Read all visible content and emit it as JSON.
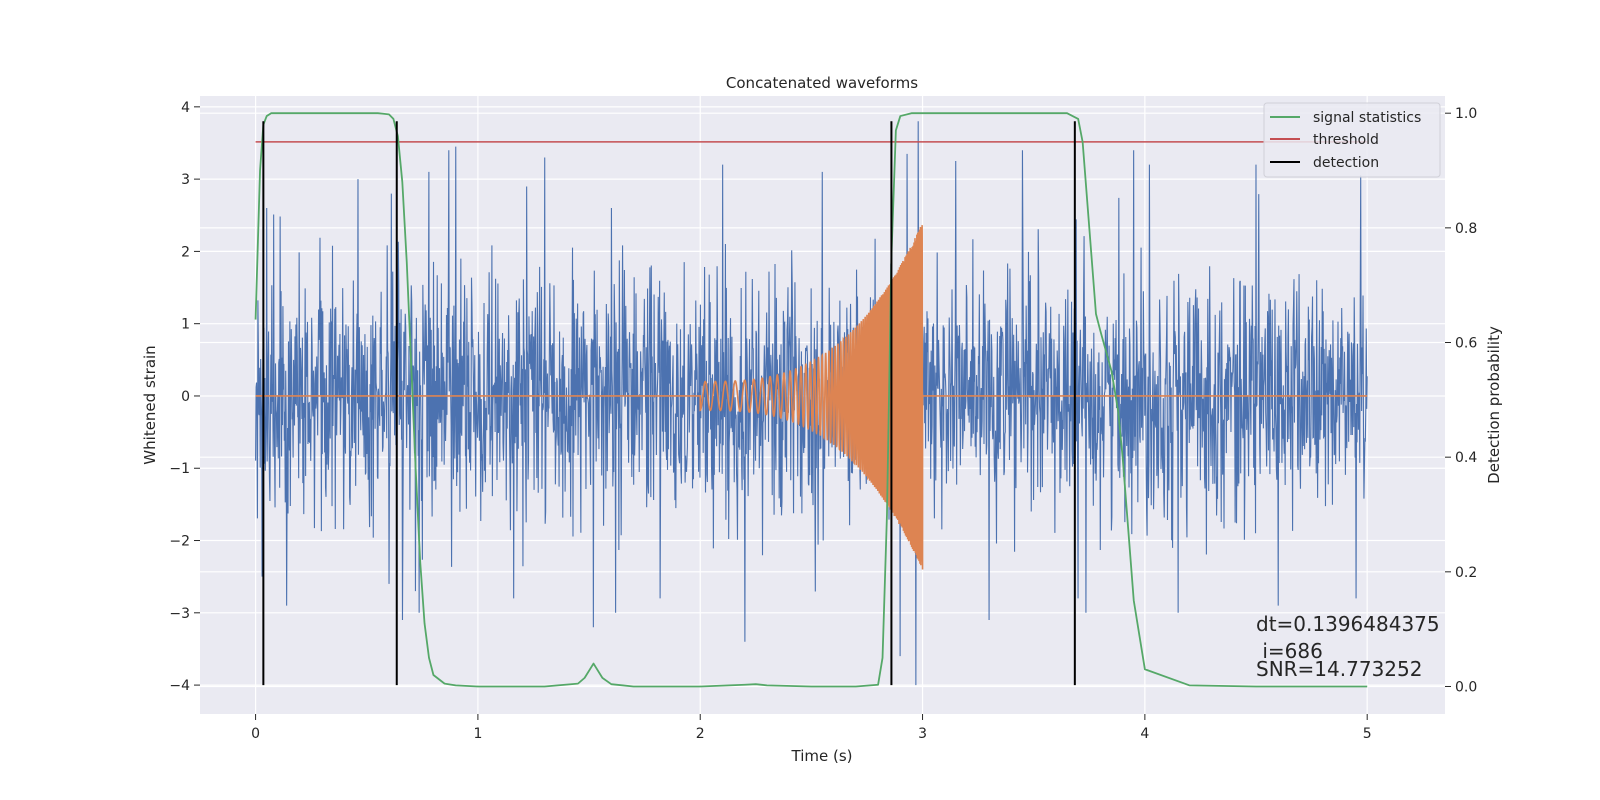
{
  "chart_data": {
    "type": "line",
    "title": "Concatenated waveforms",
    "xlabel": "Time (s)",
    "ylabel_left": "Whitened strain",
    "ylabel_right": "Detection probability",
    "xlim": [
      -0.25,
      5.35
    ],
    "ylim_left": [
      -4.4,
      4.15
    ],
    "ylim_right": [
      -0.048,
      1.03
    ],
    "x_ticks": [
      0,
      1,
      2,
      3,
      4,
      5
    ],
    "x_tick_labels": [
      "0",
      "1",
      "2",
      "3",
      "4",
      "5"
    ],
    "y_left_ticks": [
      -4,
      -3,
      -2,
      -1,
      0,
      1,
      2,
      3,
      4
    ],
    "y_left_tick_labels": [
      "−4",
      "−3",
      "−2",
      "−1",
      "0",
      "1",
      "2",
      "3",
      "4"
    ],
    "y_right_ticks": [
      0.0,
      0.2,
      0.4,
      0.6,
      0.8,
      1.0
    ],
    "y_right_tick_labels": [
      "0.0",
      "0.2",
      "0.4",
      "0.6",
      "0.8",
      "1.0"
    ],
    "grid": true,
    "legend_position": "top-right",
    "series": [
      {
        "name": "signal statistics",
        "axis": "right",
        "color": "#55a868",
        "x": [
          0.0,
          0.02,
          0.035,
          0.05,
          0.07,
          0.1,
          0.2,
          0.4,
          0.55,
          0.6,
          0.62,
          0.64,
          0.66,
          0.68,
          0.7,
          0.72,
          0.74,
          0.76,
          0.78,
          0.8,
          0.85,
          0.9,
          1.0,
          1.3,
          1.45,
          1.48,
          1.52,
          1.56,
          1.6,
          1.7,
          2.0,
          2.2,
          2.25,
          2.3,
          2.5,
          2.7,
          2.8,
          2.82,
          2.84,
          2.86,
          2.88,
          2.9,
          2.95,
          3.0,
          3.2,
          3.5,
          3.65,
          3.7,
          3.72,
          3.75,
          3.78,
          3.8,
          3.85,
          3.88,
          3.9,
          3.92,
          3.95,
          4.0,
          4.2,
          4.5,
          5.0
        ],
        "y": [
          0.64,
          0.9,
          0.98,
          0.995,
          1.0,
          1.0,
          1.0,
          1.0,
          1.0,
          0.998,
          0.99,
          0.96,
          0.88,
          0.74,
          0.56,
          0.38,
          0.22,
          0.11,
          0.05,
          0.02,
          0.005,
          0.002,
          0.0,
          0.0,
          0.005,
          0.015,
          0.04,
          0.015,
          0.004,
          0.0,
          0.0,
          0.003,
          0.004,
          0.002,
          0.0,
          0.0,
          0.003,
          0.05,
          0.3,
          0.75,
          0.97,
          0.995,
          1.0,
          1.0,
          1.0,
          1.0,
          1.0,
          0.99,
          0.95,
          0.8,
          0.65,
          0.62,
          0.55,
          0.48,
          0.4,
          0.3,
          0.15,
          0.03,
          0.002,
          0.0,
          0.0
        ]
      },
      {
        "name": "threshold",
        "axis": "right",
        "color": "#c44e52",
        "x": [
          0.0,
          5.0
        ],
        "y": [
          0.95,
          0.95
        ]
      },
      {
        "name": "detection",
        "axis": "left",
        "color": "#000000",
        "vlines": [
          0.035,
          0.635,
          2.86,
          3.685
        ],
        "y_range": [
          -4.0,
          3.8
        ]
      },
      {
        "name": "",
        "axis": "left",
        "color": "#4c72b0",
        "kind": "noise",
        "x_range": [
          0.0,
          5.0
        ],
        "typical_amplitude": 1.0,
        "peaks": [
          {
            "x": 0.05,
            "y": 2.6
          },
          {
            "x": 0.03,
            "y": -2.5
          },
          {
            "x": 0.61,
            "y": 2.8
          },
          {
            "x": 0.6,
            "y": -2.6
          },
          {
            "x": 0.72,
            "y": -2.7
          },
          {
            "x": 0.66,
            "y": -3.1
          },
          {
            "x": 0.9,
            "y": 3.45
          },
          {
            "x": 0.87,
            "y": 3.4
          },
          {
            "x": 0.78,
            "y": 3.1
          },
          {
            "x": 0.46,
            "y": 3.0
          },
          {
            "x": 0.14,
            "y": -2.9
          },
          {
            "x": 1.52,
            "y": -3.2
          },
          {
            "x": 1.3,
            "y": 3.3
          },
          {
            "x": 1.16,
            "y": -2.8
          },
          {
            "x": 1.6,
            "y": 2.6
          },
          {
            "x": 1.82,
            "y": -2.8
          },
          {
            "x": 2.2,
            "y": -3.4
          },
          {
            "x": 2.1,
            "y": 3.2
          },
          {
            "x": 2.55,
            "y": 3.1
          },
          {
            "x": 2.9,
            "y": -3.6
          },
          {
            "x": 2.93,
            "y": 3.35
          },
          {
            "x": 2.98,
            "y": 3.8
          },
          {
            "x": 2.97,
            "y": -4.0
          },
          {
            "x": 3.15,
            "y": 3.25
          },
          {
            "x": 3.3,
            "y": -3.1
          },
          {
            "x": 3.45,
            "y": 3.4
          },
          {
            "x": 3.7,
            "y": -2.8
          },
          {
            "x": 3.95,
            "y": 3.4
          },
          {
            "x": 4.02,
            "y": 3.2
          },
          {
            "x": 4.15,
            "y": -3.0
          },
          {
            "x": 4.5,
            "y": 3.2
          },
          {
            "x": 4.6,
            "y": -2.9
          },
          {
            "x": 4.97,
            "y": 3.05
          },
          {
            "x": 4.95,
            "y": -2.8
          }
        ]
      },
      {
        "name": "",
        "axis": "left",
        "color": "#dd8452",
        "kind": "chirp",
        "x_range": [
          0.0,
          5.0
        ],
        "chirp_start": 2.0,
        "chirp_end": 3.0,
        "amplitude_start": 0.2,
        "amplitude_end": 2.4,
        "y_zero": 0
      }
    ],
    "annotations": [
      "dt=0.1396484375",
      " i=686",
      "SNR=14.773252"
    ]
  },
  "colors": {
    "background": "#eaeaf2",
    "grid": "#ffffff",
    "strain": "#4c72b0",
    "waveform": "#dd8452",
    "signal": "#55a868",
    "threshold": "#c44e52",
    "detection": "#000000"
  }
}
